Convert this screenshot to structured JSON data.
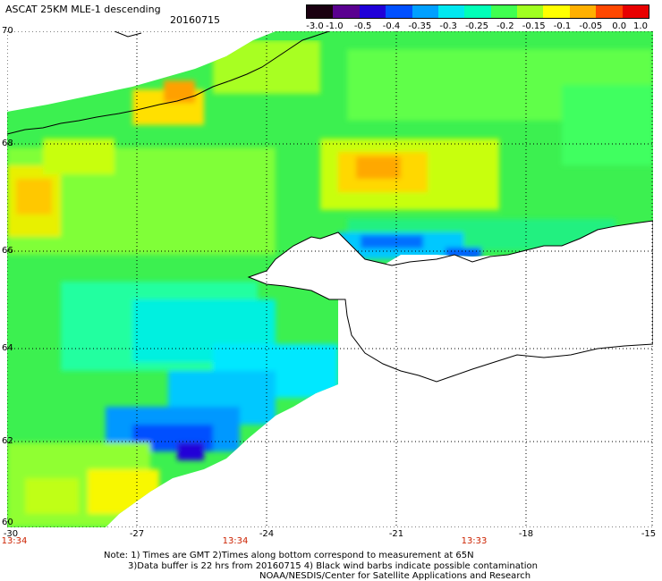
{
  "header": {
    "title": "ASCAT 25KM MLE-1 descending",
    "date": "20160715"
  },
  "colorbar": {
    "ticks": [
      "-3.0",
      "-1.0",
      "-0.5",
      "-0.4",
      "-0.35",
      "-0.3",
      "-0.25",
      "-0.2",
      "-0.15",
      "-0.1",
      "-0.05",
      "0.0",
      "1.0"
    ],
    "colors": [
      "#1a0010",
      "#5a0090",
      "#2000d8",
      "#0050ff",
      "#00a0ff",
      "#00e8f0",
      "#00ffb8",
      "#40ff50",
      "#a0ff20",
      "#ffff00",
      "#ffb000",
      "#ff4800",
      "#e80000"
    ]
  },
  "axes": {
    "lat_labels": [
      "70",
      "68",
      "66",
      "64",
      "62",
      "60"
    ],
    "lon_labels": [
      "-30",
      "-27",
      "-24",
      "-21",
      "-18",
      "-15"
    ],
    "lat_range": [
      60,
      70
    ],
    "lon_range": [
      -30,
      -15
    ],
    "grid": "dotted"
  },
  "times": [
    "13:34",
    "13:34",
    "13:33"
  ],
  "notes": {
    "line1": "Note: 1) Times are GMT 2)Times along bottom correspond to measurement at 65N",
    "line2": "3)Data buffer is 22 hrs from 20160715 4) Black wind barbs indicate possible contamination",
    "line3": "NOAA/NESDIS/Center for Satellite Applications and Research"
  }
}
